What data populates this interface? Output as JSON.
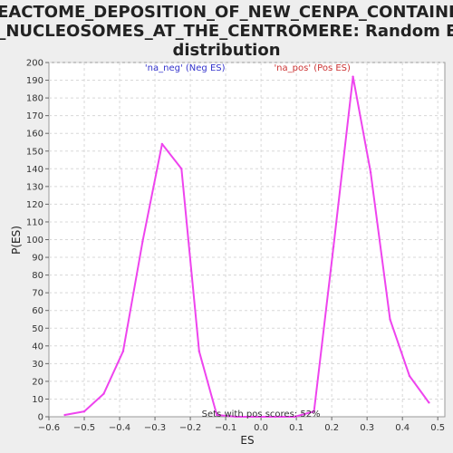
{
  "chart_data": {
    "type": "line",
    "title": [
      "REACTOME_DEPOSITION_OF_NEW_CENPA_CONTAININ",
      "G_NUCLEOSOMES_AT_THE_CENTROMERE: Random ES",
      "distribution"
    ],
    "xlabel": "ES",
    "ylabel": "P(ES)",
    "xlim": [
      -0.6,
      0.52
    ],
    "ylim": [
      0,
      200
    ],
    "xticks": [
      -0.6,
      -0.5,
      -0.4,
      -0.3,
      -0.2,
      -0.1,
      0.0,
      0.1,
      0.2,
      0.3,
      0.4,
      0.5
    ],
    "xtick_labels": [
      "−0.6",
      "−0.5",
      "−0.4",
      "−0.3",
      "−0.2",
      "−0.1",
      "0.0",
      "0.1",
      "0.2",
      "0.3",
      "0.4",
      "0.5"
    ],
    "yticks": [
      0,
      10,
      20,
      30,
      40,
      50,
      60,
      70,
      80,
      90,
      100,
      110,
      120,
      130,
      140,
      150,
      160,
      170,
      180,
      190,
      200
    ],
    "grid": true,
    "line_color": "#ee44ee",
    "series": [
      {
        "x": [
          -0.555,
          -0.5,
          -0.445,
          -0.39,
          -0.335,
          -0.28,
          -0.225,
          -0.175,
          -0.125,
          -0.07,
          -0.015,
          0.04,
          0.095,
          0.15,
          0.205,
          0.26,
          0.31,
          0.365,
          0.42,
          0.475
        ],
        "y": [
          1,
          3,
          13,
          37,
          99,
          154,
          140,
          37,
          1,
          0,
          0,
          0,
          0,
          3,
          96,
          192,
          138,
          55,
          23,
          8
        ]
      }
    ],
    "annotations": [
      {
        "text": "'na_neg' (Neg ES)",
        "x": -0.215,
        "y": 197,
        "color": "#3333cc"
      },
      {
        "text": "'na_pos' (Pos ES)",
        "x": 0.145,
        "y": 197,
        "color": "#cc3333"
      },
      {
        "text": "Sets with pos scores: 52%",
        "x": 0.0,
        "y": 1.5,
        "color": "#333333"
      }
    ]
  }
}
